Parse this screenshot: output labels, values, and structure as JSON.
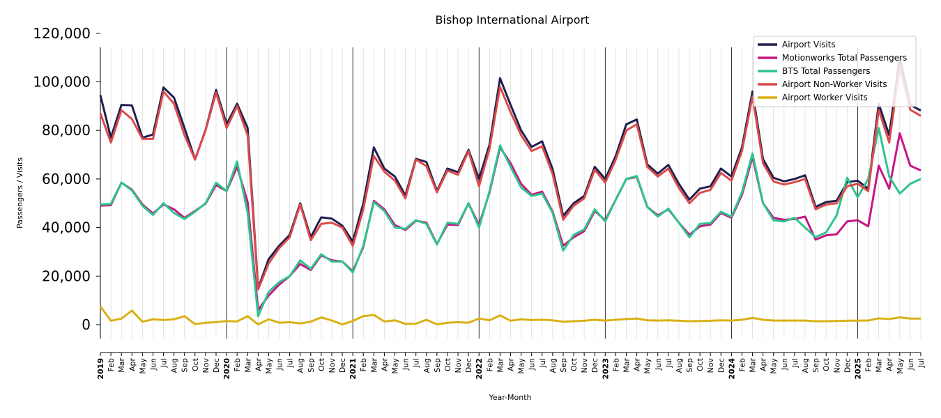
{
  "chart_data": {
    "type": "line",
    "title": "Bishop International Airport",
    "xlabel": "Year-Month",
    "ylabel": "Passengers / Visits",
    "ylim": [
      -6000,
      120000
    ],
    "yticks": [
      0,
      20000,
      40000,
      60000,
      80000,
      100000,
      120000
    ],
    "ytick_labels": [
      "0",
      "20,000",
      "40,000",
      "60,000",
      "80,000",
      "100,000",
      "120,000"
    ],
    "grid": "vertical",
    "legend_position": "top-right",
    "x": [
      "2019",
      "Feb",
      "Mar",
      "Apr",
      "May",
      "Jun",
      "Jul",
      "Aug",
      "Sep",
      "Oct",
      "Nov",
      "Dec",
      "2020",
      "Feb",
      "Mar",
      "Apr",
      "May",
      "Jun",
      "Jul",
      "Aug",
      "Sep",
      "Oct",
      "Nov",
      "Dec",
      "2021",
      "Feb",
      "Mar",
      "Apr",
      "May",
      "Jun",
      "Jul",
      "Aug",
      "Sep",
      "Oct",
      "Nov",
      "Dec",
      "2022",
      "Feb",
      "Mar",
      "Apr",
      "May",
      "Jun",
      "Jul",
      "Aug",
      "Sep",
      "Oct",
      "Nov",
      "Dec",
      "2023",
      "Feb",
      "Mar",
      "Apr",
      "May",
      "Jun",
      "Jul",
      "Aug",
      "Sep",
      "Oct",
      "Nov",
      "Dec",
      "2024",
      "Feb",
      "Mar",
      "Apr",
      "May",
      "Jun",
      "Jul",
      "Aug",
      "Sep",
      "Oct",
      "Nov",
      "Dec",
      "2025",
      "Feb",
      "Mar",
      "Apr",
      "May",
      "Jun",
      "Jul"
    ],
    "series": [
      {
        "name": "Airport Visits",
        "color": "#1f1f4f",
        "values": [
          94500,
          77000,
          90500,
          90300,
          77000,
          78300,
          97700,
          93500,
          81000,
          68000,
          80200,
          96700,
          82500,
          91000,
          81000,
          15000,
          27000,
          32500,
          37000,
          50000,
          36000,
          44200,
          43700,
          40800,
          34200,
          50000,
          73000,
          64300,
          61000,
          53200,
          68300,
          67000,
          55000,
          64300,
          62800,
          72000,
          60000,
          74200,
          101500,
          90500,
          80000,
          73200,
          75500,
          64000,
          44800,
          50000,
          53000,
          65000,
          60000,
          69500,
          82500,
          84500,
          66000,
          62200,
          65800,
          58000,
          51500,
          56000,
          57000,
          64300,
          61000,
          73000,
          96000,
          68200,
          60500,
          59000,
          60000,
          61500,
          48500,
          50500,
          51000,
          58700,
          59300,
          56000,
          91000,
          78000,
          110000,
          90500,
          88200
        ]
      },
      {
        "name": "Motionworks Total Passengers",
        "color": "#c71585",
        "values": [
          49000,
          49200,
          58500,
          55600,
          49500,
          45800,
          49500,
          47500,
          44000,
          46800,
          49800,
          57500,
          55000,
          65000,
          50500,
          6000,
          12000,
          16500,
          20000,
          25000,
          22500,
          28500,
          26500,
          26000,
          22000,
          32000,
          51000,
          47500,
          41000,
          39000,
          42800,
          42000,
          33200,
          41200,
          41000,
          50000,
          41000,
          54500,
          73000,
          66500,
          58000,
          53500,
          54800,
          46500,
          32500,
          36000,
          38500,
          46800,
          43000,
          51500,
          60000,
          60800,
          48500,
          45000,
          47500,
          42000,
          37000,
          40500,
          41200,
          46000,
          44000,
          53500,
          69000,
          50000,
          44000,
          43200,
          43500,
          44500,
          35000,
          36800,
          37200,
          42500,
          43000,
          40500,
          65500,
          56000,
          78800,
          65500,
          63500
        ]
      },
      {
        "name": "BTS Total Passengers",
        "color": "#2ec48d",
        "values": [
          49500,
          49700,
          58500,
          55300,
          49000,
          45200,
          50000,
          46000,
          43500,
          46500,
          50000,
          58500,
          55000,
          67200,
          46000,
          3500,
          13500,
          17500,
          20000,
          26500,
          23000,
          29000,
          26000,
          26000,
          21500,
          32500,
          50500,
          46800,
          40000,
          39500,
          43000,
          41500,
          33000,
          42000,
          41500,
          50000,
          40000,
          55000,
          73800,
          65000,
          56500,
          53000,
          54000,
          46000,
          30500,
          37000,
          39200,
          47500,
          42500,
          51500,
          60000,
          61200,
          48500,
          44500,
          47800,
          42000,
          36000,
          41500,
          41800,
          46500,
          44500,
          54500,
          70500,
          50000,
          43000,
          42500,
          44000,
          40000,
          36000,
          38000,
          45000,
          60500,
          52500,
          60000,
          81000,
          61000,
          54000,
          58000,
          60000
        ]
      },
      {
        "name": "Airport Non-Worker Visits",
        "color": "#dc4a4a",
        "values": [
          87000,
          75000,
          88300,
          84700,
          76500,
          76500,
          96000,
          91000,
          78000,
          68000,
          80000,
          95600,
          81000,
          90000,
          78000,
          14500,
          25200,
          31500,
          36000,
          49500,
          34800,
          41500,
          42000,
          40000,
          32500,
          47500,
          69500,
          63000,
          59300,
          52000,
          68000,
          65300,
          54500,
          63500,
          61700,
          71500,
          57000,
          72500,
          98000,
          87500,
          78000,
          71500,
          73500,
          62000,
          43200,
          49000,
          52000,
          63800,
          58500,
          68000,
          80000,
          82500,
          65000,
          61000,
          64300,
          56300,
          50000,
          54300,
          55500,
          62500,
          59300,
          71500,
          94000,
          66500,
          59000,
          57700,
          58700,
          60000,
          47500,
          49500,
          50000,
          57000,
          58000,
          55000,
          88500,
          75000,
          106000,
          88500,
          86000
        ]
      },
      {
        "name": "Airport Worker Visits",
        "color": "#d9b115",
        "values": [
          7500,
          1600,
          2500,
          5800,
          1200,
          2200,
          1900,
          2200,
          3500,
          200,
          800,
          1000,
          1500,
          1300,
          3500,
          100,
          2200,
          800,
          1000,
          500,
          1200,
          3000,
          1700,
          100,
          1500,
          3500,
          4000,
          1300,
          1800,
          300,
          400,
          2000,
          100,
          800,
          1000,
          800,
          2500,
          1800,
          3800,
          1600,
          2200,
          1900,
          2000,
          1800,
          1200,
          1400,
          1600,
          2000,
          1700,
          2000,
          2300,
          2500,
          1800,
          1700,
          1800,
          1600,
          1400,
          1500,
          1600,
          1800,
          1700,
          2000,
          2800,
          2000,
          1700,
          1700,
          1700,
          1700,
          1400,
          1400,
          1500,
          1600,
          1700,
          1700,
          2600,
          2300,
          3000,
          2500,
          2500
        ]
      }
    ]
  }
}
